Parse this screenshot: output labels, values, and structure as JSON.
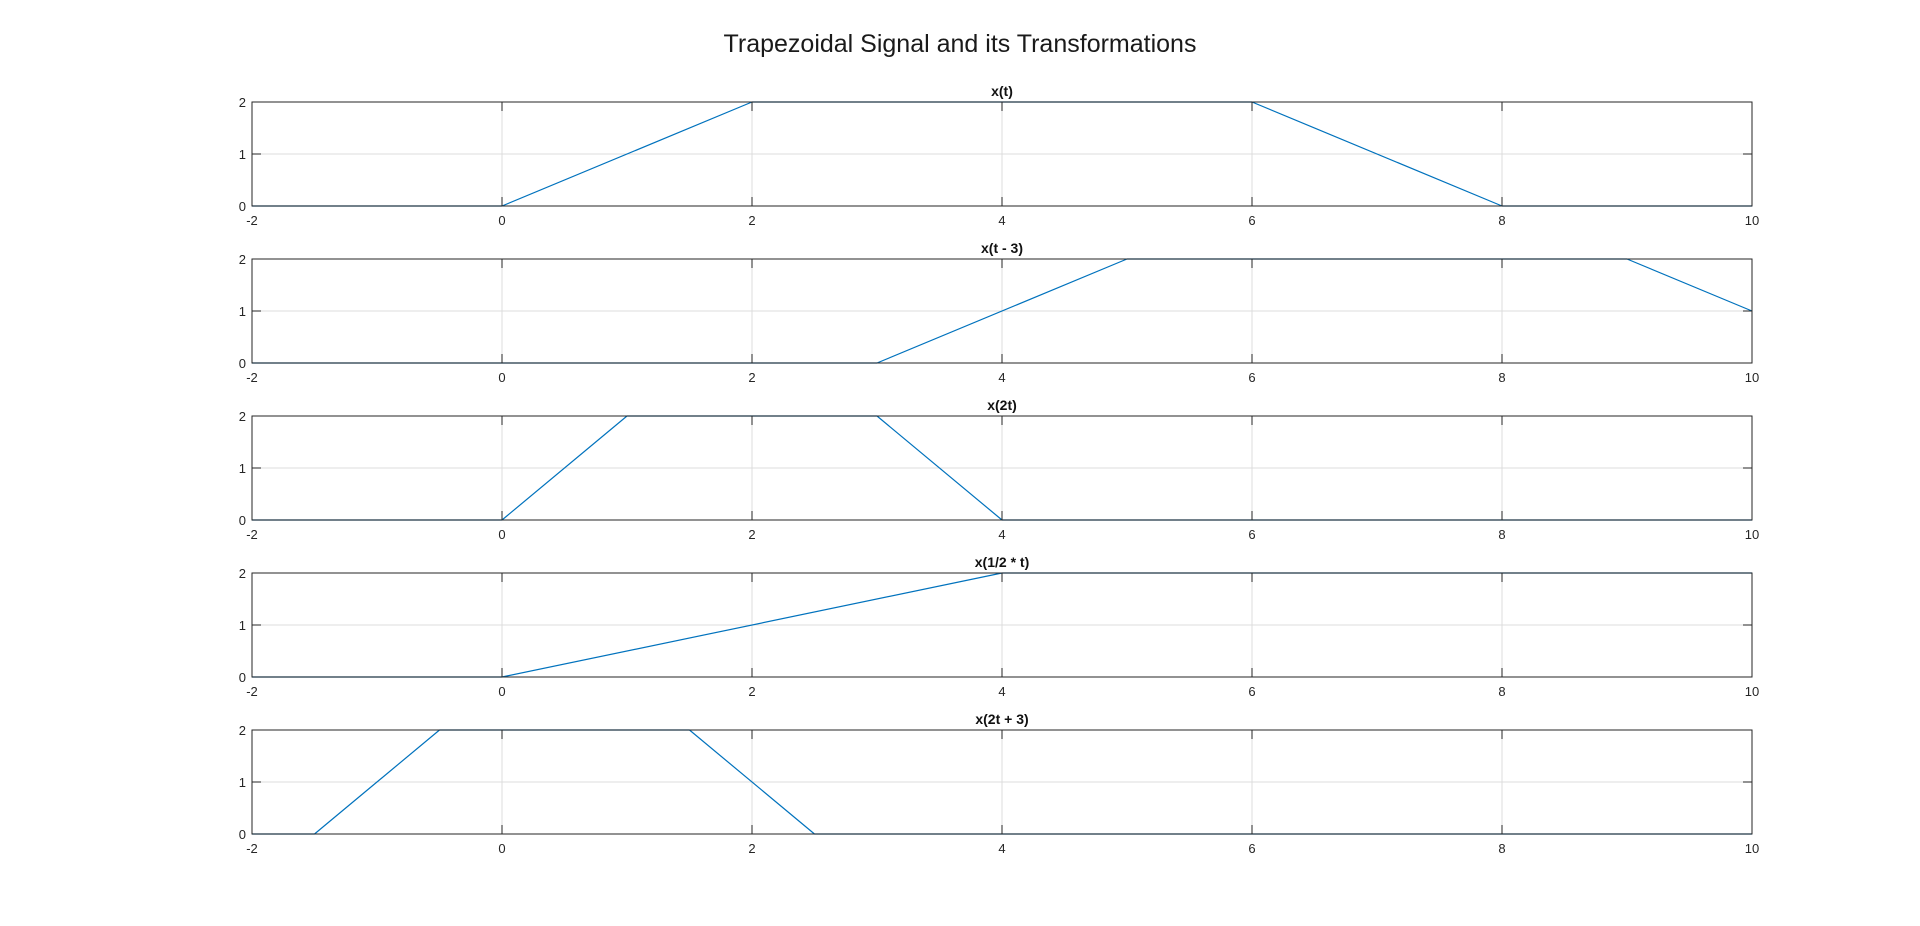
{
  "figure": {
    "title": "Trapezoidal Signal and its Transformations"
  },
  "colors": {
    "line": "#0072BD",
    "axes": "#262626",
    "grid": "#dcdcdc",
    "text": "#262626",
    "background": "#ffffff"
  },
  "chart_data": [
    {
      "type": "line",
      "title": "x(t)",
      "xlim": [
        -2,
        10
      ],
      "ylim": [
        0,
        2
      ],
      "xticks": [
        -2,
        0,
        2,
        4,
        6,
        8,
        10
      ],
      "yticks": [
        0,
        1,
        2
      ],
      "grid": true,
      "x": [
        -2,
        0,
        2,
        6,
        8,
        10
      ],
      "y": [
        0,
        0,
        2,
        2,
        0,
        0
      ]
    },
    {
      "type": "line",
      "title": "x(t - 3)",
      "xlim": [
        -2,
        10
      ],
      "ylim": [
        0,
        2
      ],
      "xticks": [
        -2,
        0,
        2,
        4,
        6,
        8,
        10
      ],
      "yticks": [
        0,
        1,
        2
      ],
      "grid": true,
      "x": [
        -2,
        3,
        5,
        9,
        10
      ],
      "y": [
        0,
        0,
        2,
        2,
        1
      ]
    },
    {
      "type": "line",
      "title": "x(2t)",
      "xlim": [
        -2,
        10
      ],
      "ylim": [
        0,
        2
      ],
      "xticks": [
        -2,
        0,
        2,
        4,
        6,
        8,
        10
      ],
      "yticks": [
        0,
        1,
        2
      ],
      "grid": true,
      "x": [
        -2,
        0,
        1,
        3,
        4,
        10
      ],
      "y": [
        0,
        0,
        2,
        2,
        0,
        0
      ]
    },
    {
      "type": "line",
      "title": "x(1/2 * t)",
      "xlim": [
        -2,
        10
      ],
      "ylim": [
        0,
        2
      ],
      "xticks": [
        -2,
        0,
        2,
        4,
        6,
        8,
        10
      ],
      "yticks": [
        0,
        1,
        2
      ],
      "grid": true,
      "x": [
        -2,
        0,
        4,
        10
      ],
      "y": [
        0,
        0,
        2,
        2
      ]
    },
    {
      "type": "line",
      "title": "x(2t + 3)",
      "xlim": [
        -2,
        10
      ],
      "ylim": [
        0,
        2
      ],
      "xticks": [
        -2,
        0,
        2,
        4,
        6,
        8,
        10
      ],
      "yticks": [
        0,
        1,
        2
      ],
      "grid": true,
      "x": [
        -2,
        -1.5,
        -0.5,
        1.5,
        2.5,
        10
      ],
      "y": [
        0,
        0,
        2,
        2,
        0,
        0
      ]
    }
  ]
}
